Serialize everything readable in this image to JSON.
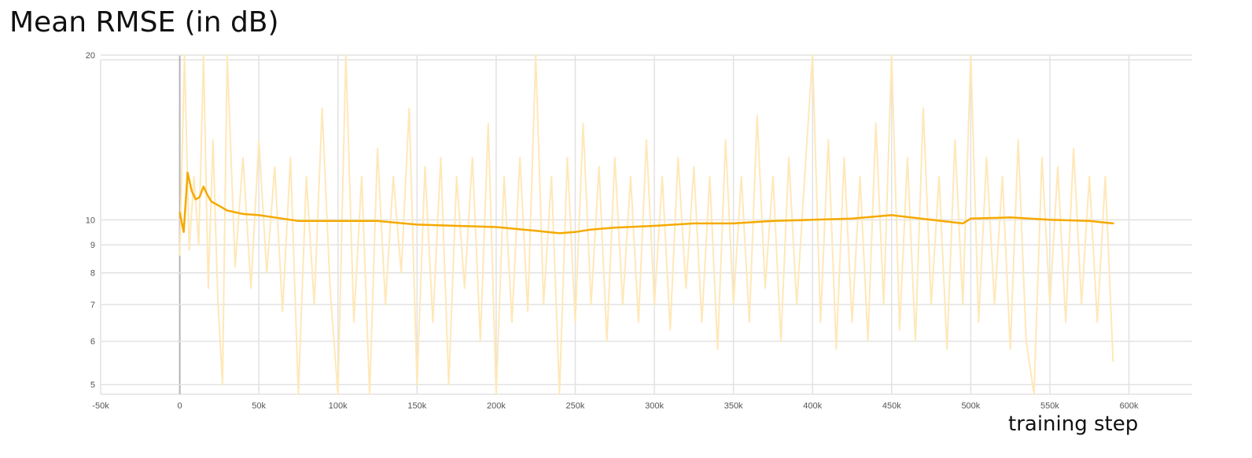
{
  "chart_data": {
    "type": "line",
    "title": "Mean RMSE (in dB)",
    "xlabel": "training step",
    "ylabel": "",
    "y_scale": "log",
    "xlim": [
      -50000,
      640000
    ],
    "ylim": [
      4.8,
      20
    ],
    "x_ticks": [
      -50000,
      0,
      50000,
      100000,
      150000,
      200000,
      250000,
      300000,
      350000,
      400000,
      450000,
      500000,
      550000,
      600000
    ],
    "x_tick_labels": [
      "-50k",
      "0",
      "50k",
      "100k",
      "150k",
      "200k",
      "250k",
      "300k",
      "350k",
      "400k",
      "450k",
      "500k",
      "550k",
      "600k"
    ],
    "y_ticks": [
      5,
      6,
      7,
      8,
      9,
      10,
      20
    ],
    "y_tick_labels": [
      "5",
      "6",
      "7",
      "8",
      "9",
      "10",
      "20"
    ],
    "grid": true,
    "legend": "none",
    "colors": {
      "smoothed": "#f5a900",
      "raw": "#ffe8b8",
      "zero_axis": "#b4b4b4",
      "grid": "#e2e2e2"
    },
    "series": [
      {
        "role": "smoothed",
        "x": [
          0,
          2500,
          5000,
          7500,
          10000,
          12500,
          15000,
          17500,
          20000,
          25000,
          30000,
          40000,
          50000,
          60000,
          75000,
          100000,
          125000,
          150000,
          175000,
          200000,
          225000,
          240000,
          250000,
          260000,
          275000,
          300000,
          325000,
          350000,
          375000,
          400000,
          425000,
          450000,
          475000,
          495000,
          500000,
          525000,
          550000,
          575000,
          590000
        ],
        "y": [
          10.3,
          9.5,
          12.2,
          11.3,
          10.9,
          11.0,
          11.5,
          11.1,
          10.8,
          10.6,
          10.4,
          10.25,
          10.2,
          10.1,
          9.95,
          9.95,
          9.95,
          9.8,
          9.75,
          9.7,
          9.55,
          9.45,
          9.5,
          9.6,
          9.68,
          9.75,
          9.85,
          9.85,
          9.95,
          10.0,
          10.05,
          10.2,
          10.0,
          9.85,
          10.05,
          10.1,
          10.0,
          9.95,
          9.85
        ]
      },
      {
        "role": "raw",
        "x": [
          0,
          3000,
          6000,
          9000,
          12000,
          15000,
          18000,
          21000,
          24000,
          27000,
          30000,
          35000,
          40000,
          45000,
          50000,
          55000,
          60000,
          65000,
          70000,
          75000,
          80000,
          85000,
          90000,
          95000,
          100000,
          105000,
          110000,
          115000,
          120000,
          125000,
          130000,
          135000,
          140000,
          145000,
          150000,
          155000,
          160000,
          165000,
          170000,
          175000,
          180000,
          185000,
          190000,
          195000,
          200000,
          205000,
          210000,
          215000,
          220000,
          225000,
          230000,
          235000,
          240000,
          245000,
          250000,
          255000,
          260000,
          265000,
          270000,
          275000,
          280000,
          285000,
          290000,
          295000,
          300000,
          305000,
          310000,
          315000,
          320000,
          325000,
          330000,
          335000,
          340000,
          345000,
          350000,
          355000,
          360000,
          365000,
          370000,
          375000,
          380000,
          385000,
          390000,
          395000,
          400000,
          405000,
          410000,
          415000,
          420000,
          425000,
          430000,
          435000,
          440000,
          445000,
          450000,
          455000,
          460000,
          465000,
          470000,
          475000,
          480000,
          485000,
          490000,
          495000,
          500000,
          505000,
          510000,
          515000,
          520000,
          525000,
          530000,
          535000,
          540000,
          545000,
          550000,
          555000,
          560000,
          565000,
          570000,
          575000,
          580000,
          585000,
          590000
        ],
        "y": [
          8.6,
          20.0,
          8.8,
          12.0,
          9.0,
          20.0,
          7.5,
          14.0,
          7.2,
          5.0,
          20.0,
          8.2,
          13.0,
          7.5,
          14.0,
          8.0,
          12.5,
          6.8,
          13.0,
          4.8,
          12.0,
          7.0,
          16.0,
          7.5,
          4.8,
          20.0,
          6.5,
          12.0,
          4.8,
          13.5,
          7.0,
          12.0,
          8.0,
          16.0,
          5.0,
          12.5,
          6.5,
          13.0,
          5.0,
          12.0,
          7.5,
          13.0,
          6.0,
          15.0,
          4.8,
          12.0,
          6.5,
          13.0,
          6.8,
          20.0,
          7.0,
          12.0,
          4.8,
          13.0,
          6.5,
          15.0,
          7.0,
          12.5,
          6.0,
          13.0,
          7.0,
          12.0,
          6.5,
          14.0,
          7.0,
          12.0,
          6.3,
          13.0,
          7.5,
          12.5,
          6.5,
          12.0,
          5.8,
          14.0,
          7.0,
          12.0,
          6.5,
          15.5,
          7.5,
          12.0,
          6.0,
          13.0,
          7.0,
          12.0,
          20.0,
          6.5,
          14.0,
          5.8,
          13.0,
          6.5,
          12.0,
          6.0,
          15.0,
          7.0,
          20.0,
          6.3,
          13.0,
          6.0,
          16.0,
          7.0,
          12.0,
          5.8,
          14.0,
          7.0,
          20.0,
          6.5,
          13.0,
          7.0,
          12.0,
          5.8,
          14.0,
          6.0,
          4.8,
          13.0,
          7.0,
          12.5,
          6.5,
          13.5,
          7.0,
          12.0,
          6.5,
          12.0,
          5.5
        ]
      }
    ]
  }
}
